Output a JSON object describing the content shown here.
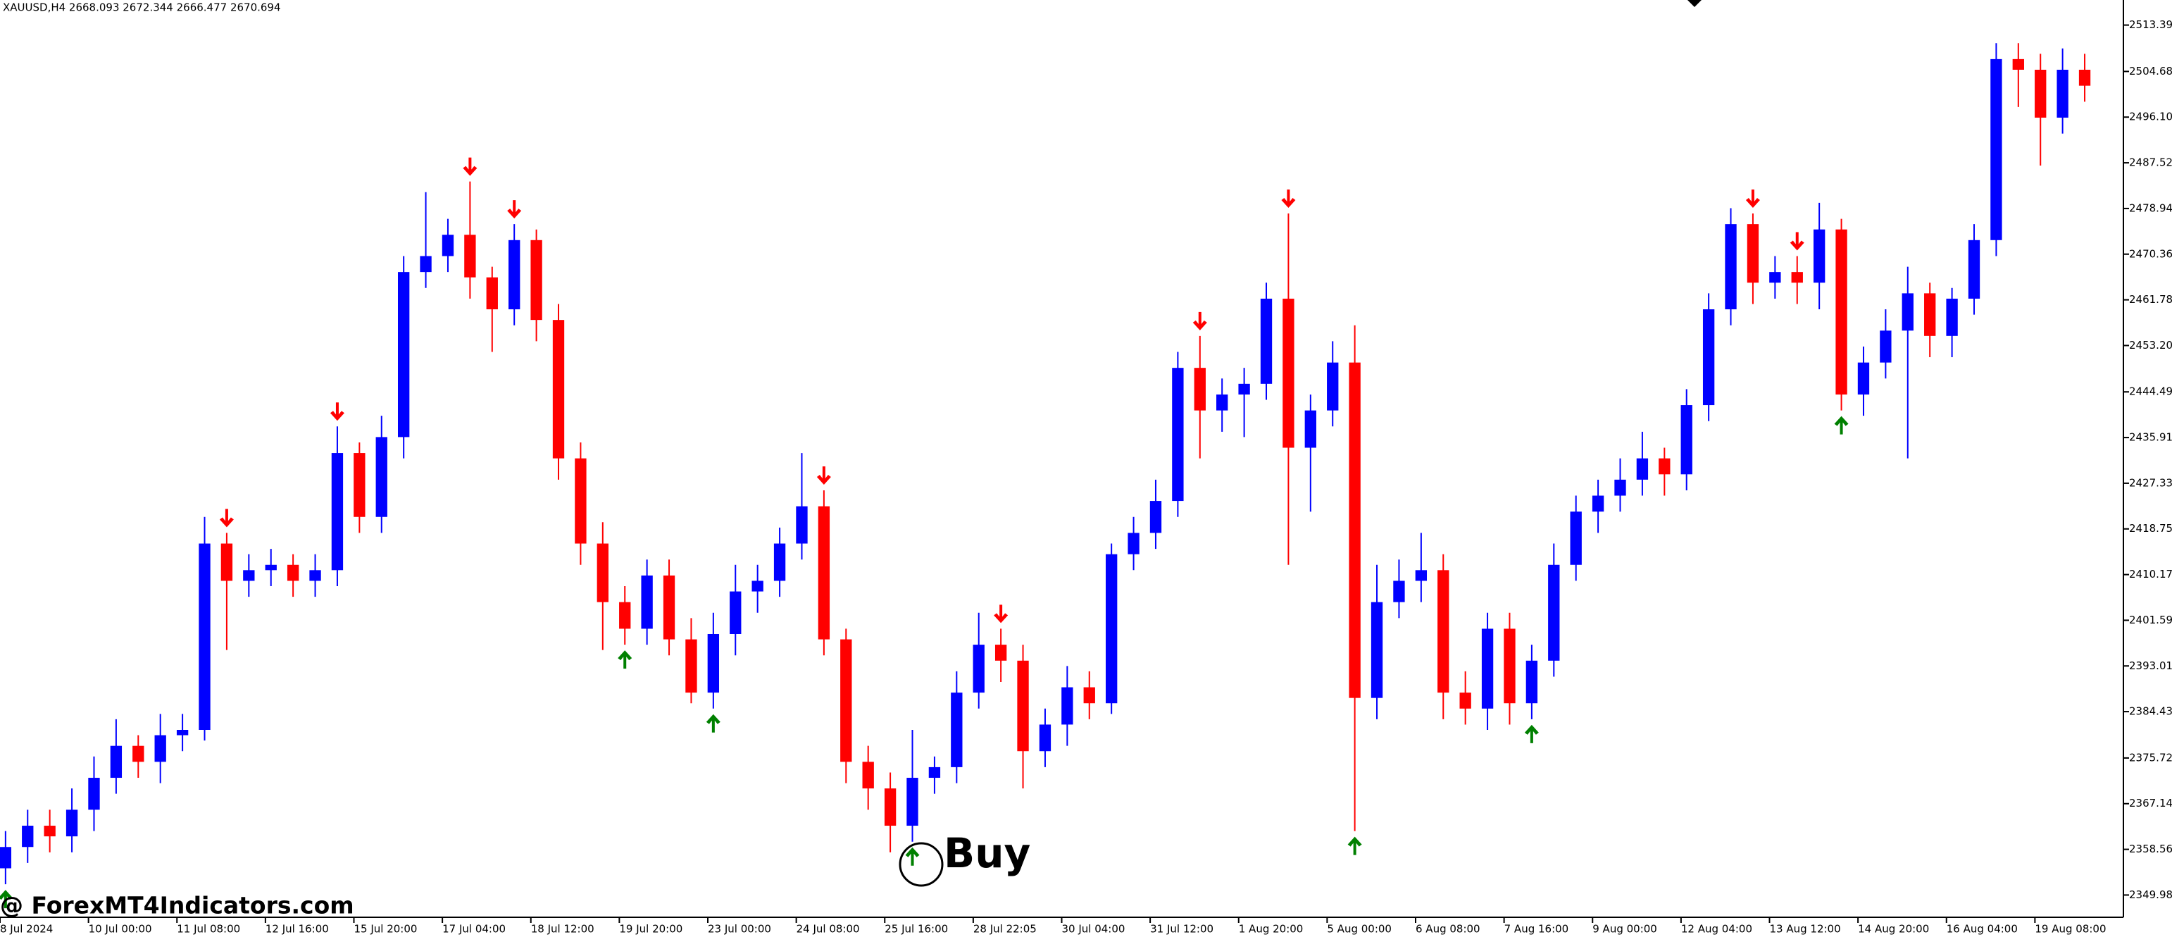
{
  "chart_data": {
    "type": "candlestick",
    "title": "XAUUSD,H4  2668.093 2672.344 2666.477 2670.694",
    "annotation": "Buy",
    "watermark": "@ ForexMT4Indicators.com",
    "up_color": "#0000ff",
    "down_color": "#ff0000",
    "buy_color": "#008000",
    "sell_color": "#ff0000",
    "open": [
      2355,
      2359,
      2363,
      2361,
      2366,
      2372,
      2378,
      2375,
      2380,
      2381,
      2416,
      2409,
      2411,
      2412,
      2409,
      2411,
      2433,
      2421,
      2436,
      2467,
      2470,
      2474,
      2466,
      2460,
      2473,
      2458,
      2432,
      2416,
      2405,
      2400,
      2410,
      2398,
      2388,
      2399,
      2407,
      2409,
      2416,
      2423,
      2398,
      2375,
      2370,
      2363,
      2372,
      2374,
      2388,
      2397,
      2394,
      2377,
      2382,
      2389,
      2386,
      2414,
      2418,
      2424,
      2449,
      2441,
      2444,
      2446,
      2462,
      2434,
      2441,
      2450,
      2387,
      2405,
      2409,
      2411,
      2388,
      2385,
      2400,
      2386,
      2394,
      2412,
      2422,
      2425,
      2428,
      2432,
      2429,
      2442,
      2460,
      2476,
      2465,
      2467,
      2465,
      2475,
      2444,
      2450,
      2456,
      2463,
      2455,
      2462,
      2473,
      2507,
      2505,
      2496,
      2505
    ],
    "high": [
      2362,
      2366,
      2366,
      2370,
      2376,
      2383,
      2380,
      2384,
      2384,
      2421,
      2418,
      2414,
      2415,
      2414,
      2414,
      2438,
      2435,
      2440,
      2470,
      2482,
      2477,
      2484,
      2468,
      2476,
      2475,
      2461,
      2435,
      2420,
      2408,
      2413,
      2413,
      2402,
      2403,
      2412,
      2412,
      2419,
      2433,
      2426,
      2400,
      2378,
      2373,
      2381,
      2376,
      2392,
      2403,
      2400,
      2397,
      2385,
      2393,
      2392,
      2416,
      2421,
      2428,
      2452,
      2455,
      2447,
      2449,
      2465,
      2478,
      2444,
      2454,
      2457,
      2412,
      2413,
      2418,
      2414,
      2392,
      2403,
      2403,
      2397,
      2416,
      2425,
      2428,
      2432,
      2437,
      2434,
      2445,
      2463,
      2479,
      2478,
      2470,
      2470,
      2480,
      2477,
      2453,
      2460,
      2468,
      2465,
      2464,
      2476,
      2510,
      2510,
      2508,
      2509,
      2508
    ],
    "low": [
      2352,
      2356,
      2358,
      2358,
      2362,
      2369,
      2372,
      2371,
      2377,
      2379,
      2396,
      2406,
      2408,
      2406,
      2406,
      2408,
      2418,
      2418,
      2432,
      2464,
      2467,
      2462,
      2452,
      2457,
      2454,
      2428,
      2412,
      2396,
      2397,
      2397,
      2395,
      2386,
      2385,
      2395,
      2403,
      2406,
      2413,
      2395,
      2371,
      2366,
      2358,
      2360,
      2369,
      2371,
      2385,
      2390,
      2370,
      2374,
      2378,
      2383,
      2384,
      2411,
      2415,
      2421,
      2432,
      2437,
      2436,
      2443,
      2412,
      2422,
      2438,
      2362,
      2383,
      2402,
      2405,
      2383,
      2382,
      2381,
      2382,
      2383,
      2391,
      2409,
      2418,
      2422,
      2425,
      2425,
      2426,
      2439,
      2457,
      2461,
      2462,
      2461,
      2460,
      2441,
      2440,
      2447,
      2432,
      2451,
      2451,
      2459,
      2470,
      2498,
      2487,
      2493,
      2499
    ],
    "close": [
      2359,
      2363,
      2361,
      2366,
      2372,
      2378,
      2375,
      2380,
      2381,
      2416,
      2409,
      2411,
      2412,
      2409,
      2411,
      2433,
      2421,
      2436,
      2467,
      2470,
      2474,
      2466,
      2460,
      2473,
      2458,
      2432,
      2416,
      2405,
      2400,
      2410,
      2398,
      2388,
      2399,
      2407,
      2409,
      2416,
      2423,
      2398,
      2375,
      2370,
      2363,
      2372,
      2374,
      2388,
      2397,
      2394,
      2377,
      2382,
      2389,
      2386,
      2414,
      2418,
      2424,
      2449,
      2441,
      2444,
      2446,
      2462,
      2434,
      2441,
      2450,
      2387,
      2405,
      2409,
      2411,
      2388,
      2385,
      2400,
      2386,
      2394,
      2412,
      2422,
      2425,
      2428,
      2432,
      2429,
      2442,
      2460,
      2476,
      2465,
      2467,
      2465,
      2475,
      2444,
      2450,
      2456,
      2463,
      2455,
      2462,
      2473,
      2507,
      2505,
      2496,
      2505,
      2502
    ],
    "buy_signals": [
      0,
      28,
      32,
      41,
      61,
      69,
      83
    ],
    "sell_signals": [
      10,
      15,
      21,
      23,
      37,
      45,
      54,
      58,
      79,
      81
    ],
    "xlim": [
      -0.25,
      95.75
    ],
    "xticks": [
      {
        "value": -0.25,
        "label": "8 Jul 2024"
      },
      {
        "value": 3.75,
        "label": "10 Jul 00:00"
      },
      {
        "value": 7.75,
        "label": "11 Jul 08:00"
      },
      {
        "value": 11.75,
        "label": "12 Jul 16:00"
      },
      {
        "value": 15.75,
        "label": "15 Jul 20:00"
      },
      {
        "value": 19.75,
        "label": "17 Jul 04:00"
      },
      {
        "value": 23.75,
        "label": "18 Jul 12:00"
      },
      {
        "value": 27.75,
        "label": "19 Jul 20:00"
      },
      {
        "value": 31.75,
        "label": "23 Jul 00:00"
      },
      {
        "value": 35.75,
        "label": "24 Jul 08:00"
      },
      {
        "value": 39.75,
        "label": "25 Jul 16:00"
      },
      {
        "value": 43.75,
        "label": "28 Jul 22:05"
      },
      {
        "value": 47.75,
        "label": "30 Jul 04:00"
      },
      {
        "value": 51.75,
        "label": "31 Jul 12:00"
      },
      {
        "value": 55.75,
        "label": "1 Aug 20:00"
      },
      {
        "value": 59.75,
        "label": "5 Aug 00:00"
      },
      {
        "value": 63.75,
        "label": "6 Aug 08:00"
      },
      {
        "value": 67.75,
        "label": "7 Aug 16:00"
      },
      {
        "value": 71.75,
        "label": "9 Aug 00:00"
      },
      {
        "value": 75.75,
        "label": "12 Aug 04:00"
      },
      {
        "value": 79.75,
        "label": "13 Aug 12:00"
      },
      {
        "value": 83.75,
        "label": "14 Aug 20:00"
      },
      {
        "value": 87.75,
        "label": "16 Aug 04:00"
      },
      {
        "value": 91.75,
        "label": "19 Aug 08:00"
      }
    ],
    "ylim": [
      2345.8,
      2518.1
    ],
    "yticks": [
      {
        "value": 2513.39,
        "label": "2513.390"
      },
      {
        "value": 2504.68,
        "label": "2504.680"
      },
      {
        "value": 2496.1,
        "label": "2496.100"
      },
      {
        "value": 2487.52,
        "label": "2487.520"
      },
      {
        "value": 2478.94,
        "label": "2478.940"
      },
      {
        "value": 2470.36,
        "label": "2470.360"
      },
      {
        "value": 2461.78,
        "label": "2461.780"
      },
      {
        "value": 2453.2,
        "label": "2453.200"
      },
      {
        "value": 2444.49,
        "label": "2444.490"
      },
      {
        "value": 2435.91,
        "label": "2435.910"
      },
      {
        "value": 2427.33,
        "label": "2427.330"
      },
      {
        "value": 2418.75,
        "label": "2418.750"
      },
      {
        "value": 2410.17,
        "label": "2410.170"
      },
      {
        "value": 2401.59,
        "label": "2401.590"
      },
      {
        "value": 2393.01,
        "label": "2393.010"
      },
      {
        "value": 2384.43,
        "label": "2384.430"
      },
      {
        "value": 2375.72,
        "label": "2375.720"
      },
      {
        "value": 2367.14,
        "label": "2367.140"
      },
      {
        "value": 2358.56,
        "label": "2358.560"
      },
      {
        "value": 2349.98,
        "label": "2349.980"
      }
    ]
  }
}
